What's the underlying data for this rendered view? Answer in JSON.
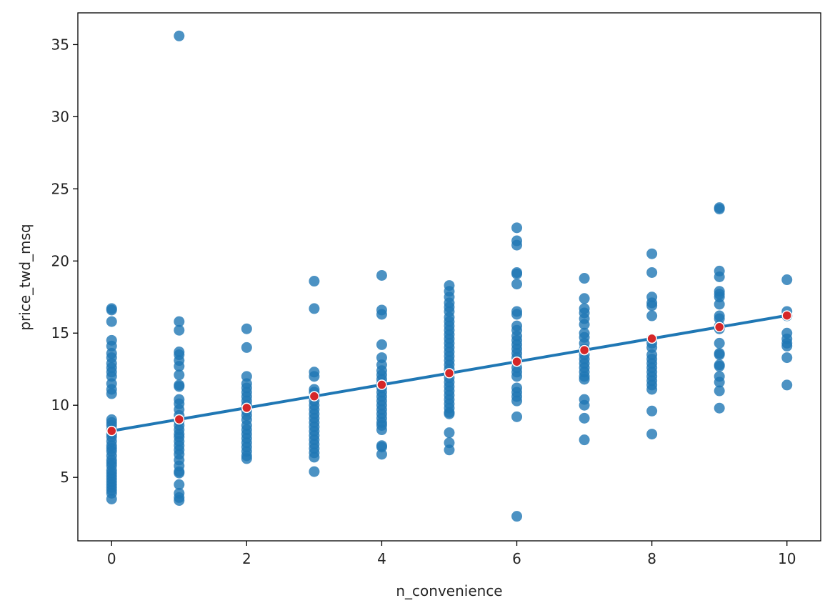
{
  "chart_data": {
    "type": "scatter",
    "title": "",
    "xlabel": "n_convenience",
    "ylabel": "price_twd_msq",
    "xlim": [
      -0.5,
      10.5
    ],
    "ylim": [
      0.6,
      37.2
    ],
    "x_ticks": [
      0,
      2,
      4,
      6,
      8,
      10
    ],
    "y_ticks": [
      5,
      10,
      15,
      20,
      25,
      30,
      35
    ],
    "x_tick_labels": [
      "0",
      "2",
      "4",
      "6",
      "8",
      "10"
    ],
    "y_tick_labels": [
      "5",
      "10",
      "15",
      "20",
      "25",
      "30",
      "35"
    ],
    "grid": false,
    "legend": "none",
    "colors": {
      "points": "#1f77b4",
      "line": "#1f77b4",
      "means": "#d62728",
      "mean_edge": "#ffffff"
    },
    "scatter_points": [
      {
        "x": 0,
        "y": [
          16.7,
          16.6,
          15.8,
          14.5,
          14.1,
          13.6,
          13.3,
          12.9,
          12.6,
          12.3,
          12.0,
          11.5,
          11.1,
          10.8,
          9.0,
          8.8,
          8.6,
          8.3,
          8.0,
          7.8,
          7.5,
          7.2,
          7.0,
          6.8,
          6.5,
          6.2,
          6.0,
          5.8,
          5.5,
          5.3,
          5.1,
          4.9,
          4.7,
          4.5,
          4.3,
          4.1,
          3.9,
          3.5
        ]
      },
      {
        "x": 1,
        "y": [
          35.6,
          15.8,
          15.2,
          13.7,
          13.5,
          13.1,
          12.7,
          12.1,
          11.4,
          11.3,
          10.4,
          10.1,
          9.7,
          9.3,
          8.9,
          8.6,
          8.3,
          8.0,
          7.8,
          7.5,
          7.2,
          6.9,
          6.6,
          6.2,
          5.8,
          5.4,
          5.3,
          4.5,
          3.9,
          3.6,
          3.4
        ]
      },
      {
        "x": 2,
        "y": [
          15.3,
          14.0,
          12.0,
          11.5,
          11.2,
          10.9,
          10.6,
          10.3,
          10.0,
          9.6,
          9.3,
          9.0,
          8.6,
          8.3,
          8.0,
          7.7,
          7.4,
          7.1,
          6.8,
          6.5,
          6.3
        ]
      },
      {
        "x": 3,
        "y": [
          18.6,
          16.7,
          12.3,
          12.0,
          11.1,
          10.9,
          10.6,
          10.3,
          10.0,
          9.7,
          9.4,
          9.1,
          8.8,
          8.5,
          8.2,
          7.9,
          7.6,
          7.3,
          7.0,
          6.7,
          6.4,
          5.4
        ]
      },
      {
        "x": 4,
        "y": [
          19.0,
          16.6,
          16.3,
          14.2,
          13.3,
          12.8,
          12.4,
          12.1,
          11.8,
          11.5,
          11.2,
          10.9,
          10.6,
          10.3,
          10.0,
          9.7,
          9.4,
          9.1,
          8.8,
          8.6,
          8.3,
          7.2,
          7.1,
          6.6
        ]
      },
      {
        "x": 5,
        "y": [
          18.3,
          17.9,
          17.5,
          17.1,
          16.8,
          16.5,
          16.1,
          15.8,
          15.5,
          15.2,
          14.9,
          14.6,
          14.3,
          14.0,
          13.7,
          13.4,
          13.1,
          12.8,
          12.5,
          12.2,
          11.9,
          11.6,
          11.3,
          11.0,
          10.7,
          10.4,
          10.1,
          9.8,
          9.5,
          9.4,
          8.1,
          7.4,
          6.9
        ]
      },
      {
        "x": 6,
        "y": [
          22.3,
          21.4,
          21.1,
          19.2,
          19.1,
          18.4,
          16.5,
          16.3,
          15.5,
          15.2,
          14.8,
          14.5,
          14.2,
          13.9,
          13.6,
          13.3,
          13.0,
          12.6,
          12.3,
          12.0,
          11.2,
          10.9,
          10.6,
          10.3,
          9.2,
          2.3
        ]
      },
      {
        "x": 7,
        "y": [
          18.8,
          17.4,
          16.7,
          16.4,
          16.0,
          15.6,
          15.0,
          14.7,
          14.3,
          13.9,
          13.5,
          13.2,
          12.9,
          12.6,
          12.3,
          12.0,
          11.8,
          10.4,
          10.0,
          9.1,
          7.6
        ]
      },
      {
        "x": 8,
        "y": [
          20.5,
          19.2,
          17.5,
          17.1,
          16.9,
          16.2,
          14.6,
          14.3,
          14.0,
          13.5,
          13.2,
          12.9,
          12.6,
          12.3,
          12.0,
          11.7,
          11.4,
          11.1,
          9.6,
          8.0
        ]
      },
      {
        "x": 9,
        "y": [
          23.7,
          23.6,
          19.3,
          18.9,
          17.9,
          17.7,
          17.5,
          17.0,
          16.2,
          16.0,
          15.5,
          15.3,
          14.3,
          13.6,
          13.5,
          12.8,
          12.7,
          12.0,
          11.6,
          11.0,
          9.8
        ]
      },
      {
        "x": 10,
        "y": [
          18.7,
          16.5,
          16.2,
          15.0,
          14.6,
          14.3,
          14.1,
          13.3,
          11.4
        ]
      }
    ],
    "mean_points": [
      {
        "x": 0,
        "y": 8.22
      },
      {
        "x": 1,
        "y": 9.02
      },
      {
        "x": 2,
        "y": 9.82
      },
      {
        "x": 3,
        "y": 10.62
      },
      {
        "x": 4,
        "y": 11.42
      },
      {
        "x": 5,
        "y": 12.22
      },
      {
        "x": 6,
        "y": 13.02
      },
      {
        "x": 7,
        "y": 13.82
      },
      {
        "x": 8,
        "y": 14.62
      },
      {
        "x": 9,
        "y": 15.42
      },
      {
        "x": 10,
        "y": 16.22
      }
    ],
    "regression_line": {
      "x": [
        0,
        10
      ],
      "y": [
        8.22,
        16.22
      ]
    }
  }
}
